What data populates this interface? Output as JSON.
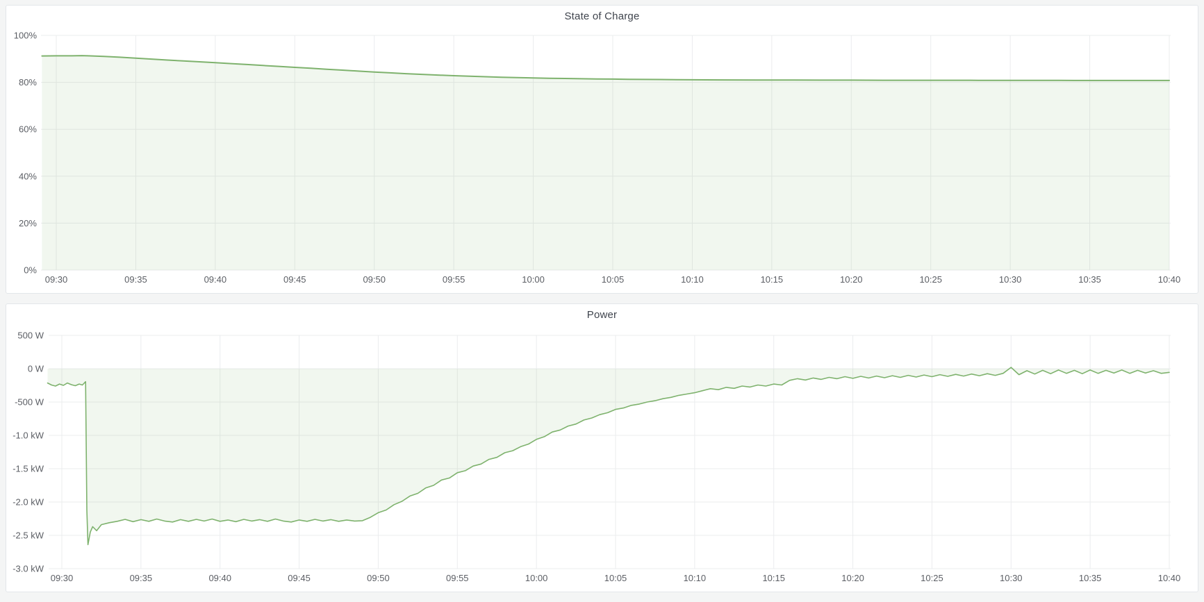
{
  "page": {
    "background_color": "#f4f5f5",
    "panel_background": "#ffffff",
    "panel_border_color": "#e3e6ea",
    "grid_color": "#ebecee",
    "tick_label_color": "#5b5e64",
    "title_color": "#3f444d"
  },
  "panels": [
    {
      "title": "State of Charge"
    },
    {
      "title": "Power"
    }
  ],
  "chart_data": [
    {
      "type": "area",
      "title": "State of Charge",
      "xlabel": "",
      "ylabel": "",
      "legend": "none",
      "grid": true,
      "line_color": "#7eb26d",
      "fill_color": "rgba(126,178,109,0.11)",
      "baseline": 0,
      "ylim": [
        0,
        100
      ],
      "y_ticks": [
        {
          "v": 100,
          "label": "100%"
        },
        {
          "v": 80,
          "label": "80%"
        },
        {
          "v": 60,
          "label": "60%"
        },
        {
          "v": 40,
          "label": "40%"
        },
        {
          "v": 20,
          "label": "20%"
        },
        {
          "v": 0,
          "label": "0%"
        }
      ],
      "x_tick_labels": [
        "09:30",
        "09:35",
        "09:40",
        "09:45",
        "09:50",
        "09:55",
        "10:00",
        "10:05",
        "10:10",
        "10:15",
        "10:20",
        "10:25",
        "10:30",
        "10:35",
        "10:40"
      ],
      "x_tick_minutes": [
        0,
        5,
        10,
        15,
        20,
        25,
        30,
        35,
        40,
        45,
        50,
        55,
        60,
        65,
        70
      ],
      "x_unit": "time (minutes relative to 09:30)",
      "y_unit": "percent",
      "series": [
        {
          "name": "State of Charge",
          "points": [
            [
              -0.9,
              91.25
            ],
            [
              0,
              91.3
            ],
            [
              1,
              91.3
            ],
            [
              1.6,
              91.4
            ],
            [
              2,
              91.3
            ],
            [
              3,
              91.05
            ],
            [
              4,
              90.7
            ],
            [
              5,
              90.3
            ],
            [
              6,
              89.9
            ],
            [
              7,
              89.5
            ],
            [
              8,
              89.1
            ],
            [
              9,
              88.75
            ],
            [
              10,
              88.4
            ],
            [
              11,
              88
            ],
            [
              12,
              87.6
            ],
            [
              13,
              87.2
            ],
            [
              14,
              86.8
            ],
            [
              15,
              86.4
            ],
            [
              16,
              86
            ],
            [
              17,
              85.6
            ],
            [
              18,
              85.2
            ],
            [
              19,
              84.8
            ],
            [
              20,
              84.4
            ],
            [
              21,
              84.05
            ],
            [
              22,
              83.7
            ],
            [
              23,
              83.4
            ],
            [
              24,
              83.1
            ],
            [
              25,
              82.85
            ],
            [
              26,
              82.6
            ],
            [
              27,
              82.4
            ],
            [
              28,
              82.2
            ],
            [
              29,
              82.05
            ],
            [
              30,
              81.9
            ],
            [
              31,
              81.75
            ],
            [
              32,
              81.65
            ],
            [
              33,
              81.55
            ],
            [
              34,
              81.45
            ],
            [
              35,
              81.4
            ],
            [
              36,
              81.3
            ],
            [
              37,
              81.25
            ],
            [
              38,
              81.2
            ],
            [
              39,
              81.15
            ],
            [
              40,
              81.1
            ],
            [
              42,
              81.05
            ],
            [
              44,
              81
            ],
            [
              46,
              81
            ],
            [
              48,
              80.95
            ],
            [
              50,
              80.95
            ],
            [
              52,
              80.9
            ],
            [
              54,
              80.9
            ],
            [
              56,
              80.9
            ],
            [
              58,
              80.85
            ],
            [
              60,
              80.85
            ],
            [
              62,
              80.85
            ],
            [
              64,
              80.8
            ],
            [
              66,
              80.8
            ],
            [
              68,
              80.8
            ],
            [
              70,
              80.8
            ]
          ]
        }
      ]
    },
    {
      "type": "area",
      "title": "Power",
      "xlabel": "",
      "ylabel": "",
      "legend": "none",
      "grid": true,
      "line_color": "#7eb26d",
      "fill_color": "rgba(126,178,109,0.11)",
      "baseline": 0,
      "ylim": [
        -3000,
        500
      ],
      "y_ticks": [
        {
          "v": 500,
          "label": "500 W"
        },
        {
          "v": 0,
          "label": "0 W"
        },
        {
          "v": -500,
          "label": "-500 W"
        },
        {
          "v": -1000,
          "label": "-1.0 kW"
        },
        {
          "v": -1500,
          "label": "-1.5 kW"
        },
        {
          "v": -2000,
          "label": "-2.0 kW"
        },
        {
          "v": -2500,
          "label": "-2.5 kW"
        },
        {
          "v": -3000,
          "label": "-3.0 kW"
        }
      ],
      "x_tick_labels": [
        "09:30",
        "09:35",
        "09:40",
        "09:45",
        "09:50",
        "09:55",
        "10:00",
        "10:05",
        "10:10",
        "10:15",
        "10:20",
        "10:25",
        "10:30",
        "10:35",
        "10:40"
      ],
      "x_tick_minutes": [
        0,
        5,
        10,
        15,
        20,
        25,
        30,
        35,
        40,
        45,
        50,
        55,
        60,
        65,
        70
      ],
      "x_unit": "time (minutes relative to 09:30)",
      "y_unit": "watts",
      "series": [
        {
          "name": "Power",
          "points": [
            [
              -0.9,
              -215
            ],
            [
              -0.65,
              -245
            ],
            [
              -0.4,
              -260
            ],
            [
              -0.15,
              -230
            ],
            [
              0.1,
              -250
            ],
            [
              0.35,
              -215
            ],
            [
              0.6,
              -240
            ],
            [
              0.85,
              -255
            ],
            [
              1.1,
              -230
            ],
            [
              1.3,
              -245
            ],
            [
              1.5,
              -195
            ],
            [
              1.58,
              -2120
            ],
            [
              1.65,
              -2640
            ],
            [
              1.8,
              -2450
            ],
            [
              1.95,
              -2370
            ],
            [
              2.2,
              -2430
            ],
            [
              2.5,
              -2340
            ],
            [
              3,
              -2310
            ],
            [
              3.5,
              -2290
            ],
            [
              4,
              -2260
            ],
            [
              4.5,
              -2295
            ],
            [
              5,
              -2265
            ],
            [
              5.5,
              -2290
            ],
            [
              6,
              -2255
            ],
            [
              6.5,
              -2285
            ],
            [
              7,
              -2300
            ],
            [
              7.5,
              -2265
            ],
            [
              8,
              -2290
            ],
            [
              8.5,
              -2260
            ],
            [
              9,
              -2285
            ],
            [
              9.5,
              -2255
            ],
            [
              10,
              -2290
            ],
            [
              10.5,
              -2270
            ],
            [
              11,
              -2295
            ],
            [
              11.5,
              -2260
            ],
            [
              12,
              -2285
            ],
            [
              12.5,
              -2265
            ],
            [
              13,
              -2290
            ],
            [
              13.5,
              -2255
            ],
            [
              14,
              -2285
            ],
            [
              14.5,
              -2300
            ],
            [
              15,
              -2270
            ],
            [
              15.5,
              -2290
            ],
            [
              16,
              -2260
            ],
            [
              16.5,
              -2285
            ],
            [
              17,
              -2265
            ],
            [
              17.5,
              -2290
            ],
            [
              18,
              -2270
            ],
            [
              18.5,
              -2285
            ],
            [
              19,
              -2280
            ],
            [
              19.5,
              -2230
            ],
            [
              20,
              -2160
            ],
            [
              20.5,
              -2120
            ],
            [
              21,
              -2040
            ],
            [
              21.5,
              -1990
            ],
            [
              22,
              -1910
            ],
            [
              22.5,
              -1870
            ],
            [
              23,
              -1790
            ],
            [
              23.5,
              -1750
            ],
            [
              24,
              -1670
            ],
            [
              24.5,
              -1640
            ],
            [
              25,
              -1560
            ],
            [
              25.5,
              -1530
            ],
            [
              26,
              -1460
            ],
            [
              26.5,
              -1430
            ],
            [
              27,
              -1360
            ],
            [
              27.5,
              -1330
            ],
            [
              28,
              -1260
            ],
            [
              28.5,
              -1230
            ],
            [
              29,
              -1170
            ],
            [
              29.5,
              -1130
            ],
            [
              30,
              -1060
            ],
            [
              30.5,
              -1020
            ],
            [
              31,
              -950
            ],
            [
              31.5,
              -920
            ],
            [
              32,
              -860
            ],
            [
              32.5,
              -830
            ],
            [
              33,
              -770
            ],
            [
              33.5,
              -740
            ],
            [
              34,
              -690
            ],
            [
              34.5,
              -660
            ],
            [
              35,
              -610
            ],
            [
              35.5,
              -590
            ],
            [
              36,
              -550
            ],
            [
              36.5,
              -530
            ],
            [
              37,
              -500
            ],
            [
              37.5,
              -480
            ],
            [
              38,
              -450
            ],
            [
              38.5,
              -430
            ],
            [
              39,
              -400
            ],
            [
              39.5,
              -380
            ],
            [
              40,
              -360
            ],
            [
              40.5,
              -330
            ],
            [
              41,
              -300
            ],
            [
              41.5,
              -315
            ],
            [
              42,
              -280
            ],
            [
              42.5,
              -295
            ],
            [
              43,
              -260
            ],
            [
              43.5,
              -275
            ],
            [
              44,
              -245
            ],
            [
              44.5,
              -260
            ],
            [
              45,
              -230
            ],
            [
              45.5,
              -245
            ],
            [
              46,
              -175
            ],
            [
              46.5,
              -150
            ],
            [
              47,
              -170
            ],
            [
              47.5,
              -140
            ],
            [
              48,
              -160
            ],
            [
              48.5,
              -130
            ],
            [
              49,
              -150
            ],
            [
              49.5,
              -120
            ],
            [
              50,
              -145
            ],
            [
              50.5,
              -115
            ],
            [
              51,
              -140
            ],
            [
              51.5,
              -110
            ],
            [
              52,
              -135
            ],
            [
              52.5,
              -105
            ],
            [
              53,
              -130
            ],
            [
              53.5,
              -100
            ],
            [
              54,
              -125
            ],
            [
              54.5,
              -95
            ],
            [
              55,
              -120
            ],
            [
              55.5,
              -90
            ],
            [
              56,
              -115
            ],
            [
              56.5,
              -85
            ],
            [
              57,
              -110
            ],
            [
              57.5,
              -80
            ],
            [
              58,
              -105
            ],
            [
              58.5,
              -75
            ],
            [
              59,
              -100
            ],
            [
              59.5,
              -70
            ],
            [
              60,
              20
            ],
            [
              60.5,
              -90
            ],
            [
              61,
              -30
            ],
            [
              61.5,
              -80
            ],
            [
              62,
              -25
            ],
            [
              62.5,
              -75
            ],
            [
              63,
              -20
            ],
            [
              63.5,
              -70
            ],
            [
              64,
              -25
            ],
            [
              64.5,
              -75
            ],
            [
              65,
              -20
            ],
            [
              65.5,
              -70
            ],
            [
              66,
              -25
            ],
            [
              66.5,
              -65
            ],
            [
              67,
              -20
            ],
            [
              67.5,
              -70
            ],
            [
              68,
              -25
            ],
            [
              68.5,
              -65
            ],
            [
              69,
              -30
            ],
            [
              69.5,
              -70
            ],
            [
              70,
              -55
            ]
          ]
        }
      ]
    }
  ]
}
